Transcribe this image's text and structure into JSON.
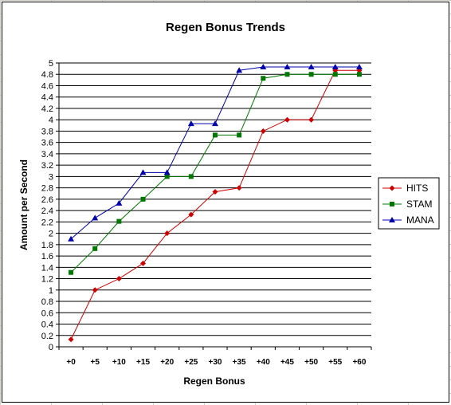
{
  "chart_data": {
    "type": "line",
    "title": "Regen Bonus Trends",
    "xlabel": "Regen Bonus",
    "ylabel": "Amount per Second",
    "categories": [
      "+0",
      "+5",
      "+10",
      "+15",
      "+20",
      "+25",
      "+30",
      "+35",
      "+40",
      "+45",
      "+50",
      "+55",
      "+60"
    ],
    "ylim": [
      0,
      5
    ],
    "ytick_step": 0.2,
    "grid": "horizontal",
    "legend_position": "right",
    "series": [
      {
        "name": "HITS",
        "color": "#cc0000",
        "marker": "diamond",
        "values": [
          0.13,
          1.0,
          1.2,
          1.47,
          2.0,
          2.33,
          2.73,
          2.8,
          3.8,
          4.0,
          4.0,
          4.87,
          4.87
        ]
      },
      {
        "name": "STAM",
        "color": "#007700",
        "marker": "square",
        "values": [
          1.31,
          1.73,
          2.21,
          2.6,
          3.0,
          3.0,
          3.73,
          3.73,
          4.73,
          4.8,
          4.8,
          4.8,
          4.8
        ]
      },
      {
        "name": "MANA",
        "color": "#0000aa",
        "marker": "triangle",
        "values": [
          1.9,
          2.27,
          2.53,
          3.07,
          3.07,
          3.93,
          3.93,
          4.87,
          4.93,
          4.93,
          4.93,
          4.93,
          4.93
        ]
      }
    ]
  }
}
